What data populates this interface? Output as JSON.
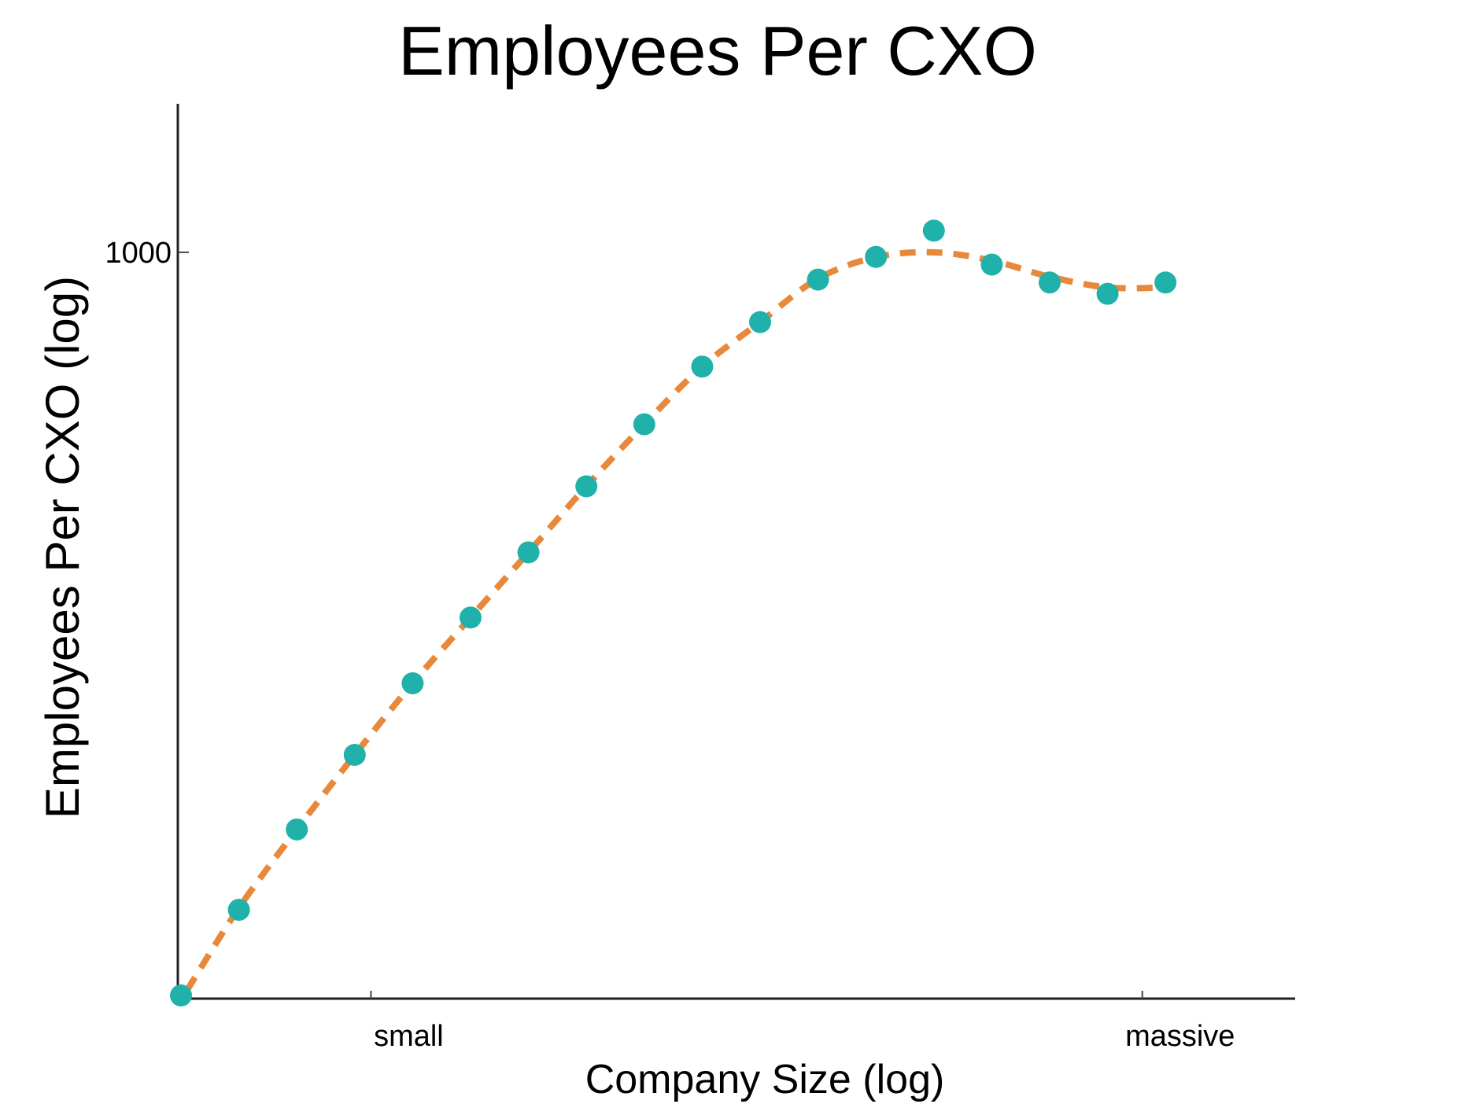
{
  "chart_data": {
    "type": "scatter",
    "title": "Employees Per CXO",
    "xlabel": "Company Size (log)",
    "ylabel": "Employees Per CXO (log)",
    "y_scale": "log",
    "ylim": [
      10,
      2500
    ],
    "xlim": [
      0,
      19.3
    ],
    "grid": false,
    "legend": "none",
    "x_ticks": [
      {
        "value": 3.28,
        "label": "small"
      },
      {
        "value": 16.6,
        "label": "massive"
      }
    ],
    "y_ticks": [
      {
        "value": 1000,
        "label": "1000"
      }
    ],
    "colors": {
      "points": "#20B2AA",
      "fit": "#E8883A"
    },
    "series": [
      {
        "kind": "points",
        "x": [
          0,
          1,
          2,
          3,
          4,
          5,
          6,
          7,
          8,
          9,
          10,
          11,
          12,
          13,
          14,
          15,
          16,
          17
        ],
        "y": [
          10.2,
          17.3,
          28.4,
          45,
          70,
          105,
          157,
          236,
          346,
          494,
          650,
          845,
          972,
          1143,
          927,
          830,
          774,
          830
        ]
      },
      {
        "kind": "dashed-fit",
        "x": [
          0.1,
          1,
          2,
          3,
          4,
          5,
          6,
          7,
          8,
          9,
          10,
          11,
          12,
          13,
          14,
          15,
          16,
          17
        ],
        "y": [
          10.5,
          17.5,
          28.4,
          45,
          70,
          105,
          157,
          236,
          346,
          494,
          650,
          850,
          970,
          1000,
          950,
          860,
          805,
          805
        ]
      }
    ]
  }
}
